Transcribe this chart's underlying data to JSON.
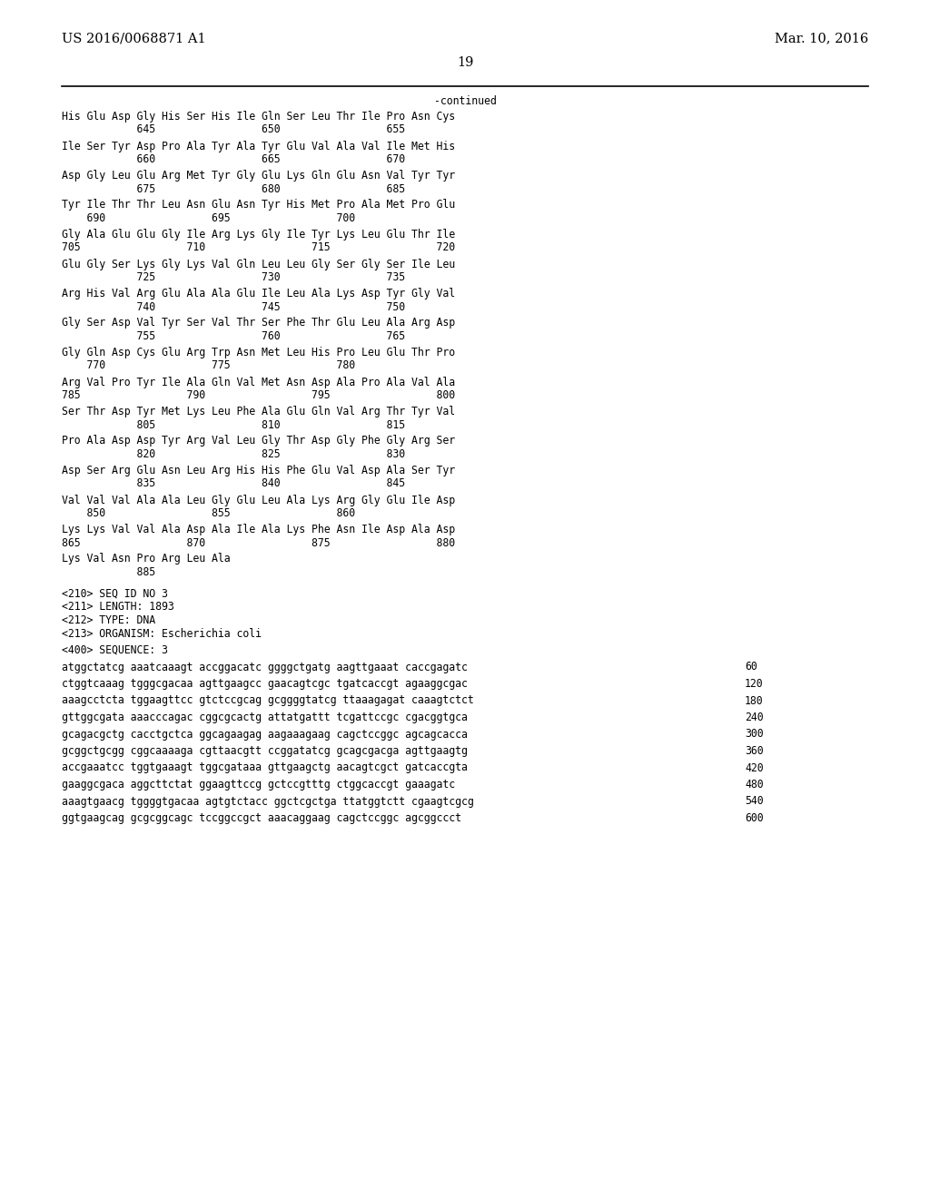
{
  "header_left": "US 2016/0068871 A1",
  "header_right": "Mar. 10, 2016",
  "page_number": "19",
  "continued_label": "-continued",
  "background_color": "#ffffff",
  "text_color": "#000000",
  "aa_lines": [
    [
      "His Glu Asp Gly His Ser His Ile Gln Ser Leu Thr Ile Pro Asn Cys",
      ""
    ],
    [
      "            645                 650                 655",
      ""
    ],
    [
      "Ile Ser Tyr Asp Pro Ala Tyr Ala Tyr Glu Val Ala Val Ile Met His",
      ""
    ],
    [
      "            660                 665                 670",
      ""
    ],
    [
      "Asp Gly Leu Glu Arg Met Tyr Gly Glu Lys Gln Glu Asn Val Tyr Tyr",
      ""
    ],
    [
      "            675                 680                 685",
      ""
    ],
    [
      "Tyr Ile Thr Thr Leu Asn Glu Asn Tyr His Met Pro Ala Met Pro Glu",
      ""
    ],
    [
      "    690                 695                 700",
      ""
    ],
    [
      "Gly Ala Glu Glu Gly Ile Arg Lys Gly Ile Tyr Lys Leu Glu Thr Ile",
      ""
    ],
    [
      "705                 710                 715                 720",
      ""
    ],
    [
      "Glu Gly Ser Lys Gly Lys Val Gln Leu Leu Gly Ser Gly Ser Ile Leu",
      ""
    ],
    [
      "            725                 730                 735",
      ""
    ],
    [
      "Arg His Val Arg Glu Ala Ala Glu Ile Leu Ala Lys Asp Tyr Gly Val",
      ""
    ],
    [
      "            740                 745                 750",
      ""
    ],
    [
      "Gly Ser Asp Val Tyr Ser Val Thr Ser Phe Thr Glu Leu Ala Arg Asp",
      ""
    ],
    [
      "            755                 760                 765",
      ""
    ],
    [
      "Gly Gln Asp Cys Glu Arg Trp Asn Met Leu His Pro Leu Glu Thr Pro",
      ""
    ],
    [
      "    770                 775                 780",
      ""
    ],
    [
      "Arg Val Pro Tyr Ile Ala Gln Val Met Asn Asp Ala Pro Ala Val Ala",
      ""
    ],
    [
      "785                 790                 795                 800",
      ""
    ],
    [
      "Ser Thr Asp Tyr Met Lys Leu Phe Ala Glu Gln Val Arg Thr Tyr Val",
      ""
    ],
    [
      "            805                 810                 815",
      ""
    ],
    [
      "Pro Ala Asp Asp Tyr Arg Val Leu Gly Thr Asp Gly Phe Gly Arg Ser",
      ""
    ],
    [
      "            820                 825                 830",
      ""
    ],
    [
      "Asp Ser Arg Glu Asn Leu Arg His His Phe Glu Val Asp Ala Ser Tyr",
      ""
    ],
    [
      "            835                 840                 845",
      ""
    ],
    [
      "Val Val Val Ala Ala Leu Gly Glu Leu Ala Lys Arg Gly Glu Ile Asp",
      ""
    ],
    [
      "    850                 855                 860",
      ""
    ],
    [
      "Lys Lys Val Val Ala Asp Ala Ile Ala Lys Phe Asn Ile Asp Ala Asp",
      ""
    ],
    [
      "865                 870                 875                 880",
      ""
    ],
    [
      "Lys Val Asn Pro Arg Leu Ala",
      ""
    ],
    [
      "            885",
      ""
    ]
  ],
  "meta_lines": [
    "<210> SEQ ID NO 3",
    "<211> LENGTH: 1893",
    "<212> TYPE: DNA",
    "<213> ORGANISM: Escherichia coli"
  ],
  "seq_label": "<400> SEQUENCE: 3",
  "dna_lines": [
    [
      "atggctatcg aaatcaaagt accggacatc ggggctgatg aagttgaaat caccgagatc",
      "60"
    ],
    [
      "ctggtcaaag tgggcgacaa agttgaagcc gaacagtcgc tgatcaccgt agaaggcgac",
      "120"
    ],
    [
      "aaagcctcta tggaagttcc gtctccgcag gcggggtatcg ttaaagagat caaagtctct",
      "180"
    ],
    [
      "gttggcgata aaacccagac cggcgcactg attatgattt tcgattccgc cgacggtgca",
      "240"
    ],
    [
      "gcagacgctg cacctgctca ggcagaagag aagaaagaag cagctccggc agcagcacca",
      "300"
    ],
    [
      "gcggctgcgg cggcaaaaga cgttaacgtt ccggatatcg gcagcgacga agttgaagtg",
      "360"
    ],
    [
      "accgaaatcc tggtgaaagt tggcgataaa gttgaagctg aacagtcgct gatcaccgta",
      "420"
    ],
    [
      "gaaggcgaca aggcttctat ggaagttccg gctccgtttg ctggcaccgt gaaagatc",
      "480"
    ],
    [
      "aaagtgaacg tggggtgacaa agtgtctacc ggctcgctga ttatggtctt cgaagtcgcg",
      "540"
    ],
    [
      "ggtgaagcag gcgcggcagc tccggccgct aaacaggaag cagctccggc agcggccct",
      "600"
    ]
  ]
}
